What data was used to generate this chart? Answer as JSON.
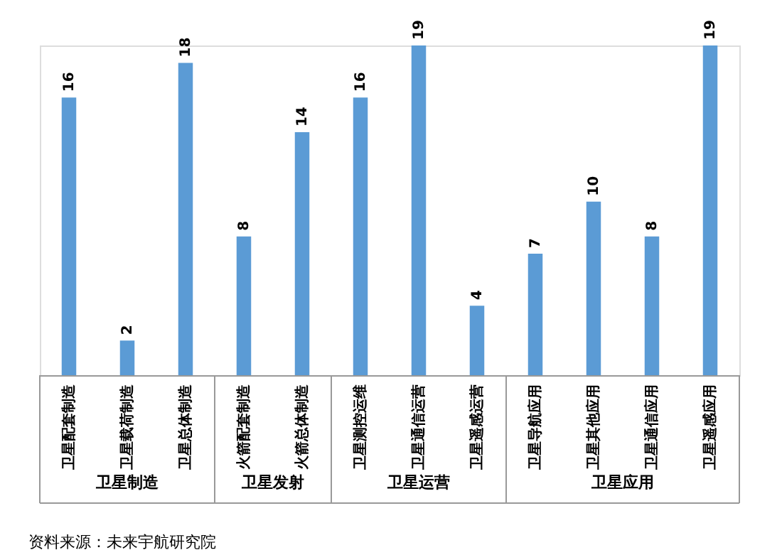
{
  "chart_data": {
    "type": "bar",
    "categories": [
      "卫星配套制造",
      "卫星载荷制造",
      "卫星总体制造",
      "火箭配套制造",
      "火箭总体制造",
      "卫星测控运维",
      "卫星通信运营",
      "卫星遥感运营",
      "卫星导航应用",
      "卫星其他应用",
      "卫星通信应用",
      "卫星遥感应用"
    ],
    "values": [
      16,
      2,
      18,
      8,
      14,
      16,
      19,
      4,
      7,
      10,
      8,
      19
    ],
    "color": "#5b9bd5",
    "data_labels": true,
    "annotations": [
      "卫星制造",
      "卫星发射",
      "卫星运营",
      "卫星应用",
      "资料来源：未来宇航研究院"
    ]
  }
}
